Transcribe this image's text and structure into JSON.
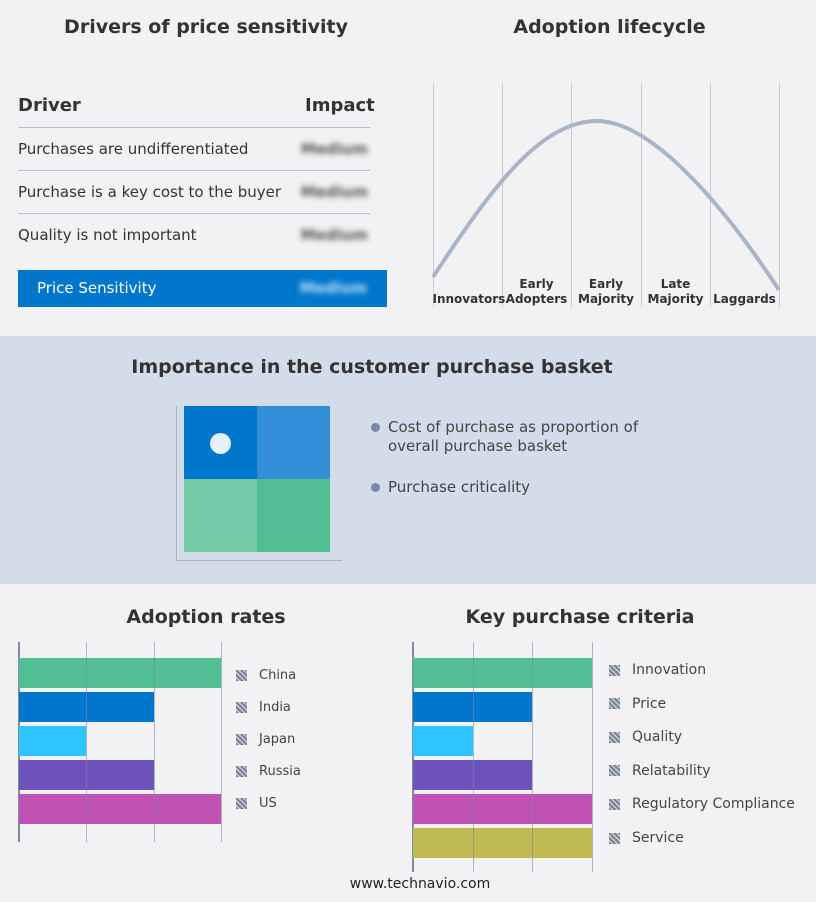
{
  "drivers": {
    "title": "Drivers of price sensitivity",
    "col_driver": "Driver",
    "col_impact": "Impact",
    "rows": [
      {
        "driver": "Purchases are undifferentiated",
        "impact": "Medium"
      },
      {
        "driver": "Purchase is a key cost to the buyer",
        "impact": "Medium"
      },
      {
        "driver": "Quality is not important",
        "impact": "Medium"
      }
    ],
    "summary": {
      "label": "Price Sensitivity",
      "impact": "Medium"
    }
  },
  "lifecycle": {
    "title": "Adoption lifecycle",
    "stages": [
      "Innovators",
      "Early Adopters",
      "Early Majority",
      "Late Majority",
      "Laggards"
    ]
  },
  "basket": {
    "title": "Importance in the customer purchase basket",
    "legend": [
      "Cost of purchase as proportion of overall purchase basket",
      "Purchase criticality"
    ],
    "colors": [
      "#0077cc",
      "#3390d8",
      "#75c8a8",
      "#52be93"
    ]
  },
  "chart_data": [
    {
      "type": "bar",
      "orientation": "horizontal",
      "title": "Adoption rates",
      "categories": [
        "China",
        "India",
        "Japan",
        "Russia",
        "US"
      ],
      "values": [
        3,
        2,
        1,
        2,
        3
      ],
      "xlim": [
        0,
        3
      ],
      "grid": true,
      "legend": "right",
      "colors": [
        "#52be93",
        "#0077cc",
        "#2ec4ff",
        "#6e52bb",
        "#c052b4"
      ]
    },
    {
      "type": "bar",
      "orientation": "horizontal",
      "title": "Key purchase criteria",
      "categories": [
        "Innovation",
        "Price",
        "Quality",
        "Relatability",
        "Regulatory Compliance",
        "Service"
      ],
      "values": [
        3,
        2,
        1,
        2,
        3,
        3
      ],
      "xlim": [
        0,
        3
      ],
      "grid": true,
      "legend": "right",
      "colors": [
        "#52be93",
        "#0077cc",
        "#2ec4ff",
        "#6e52bb",
        "#c052b4",
        "#c0ba52"
      ]
    }
  ],
  "footer": "www.technavio.com"
}
